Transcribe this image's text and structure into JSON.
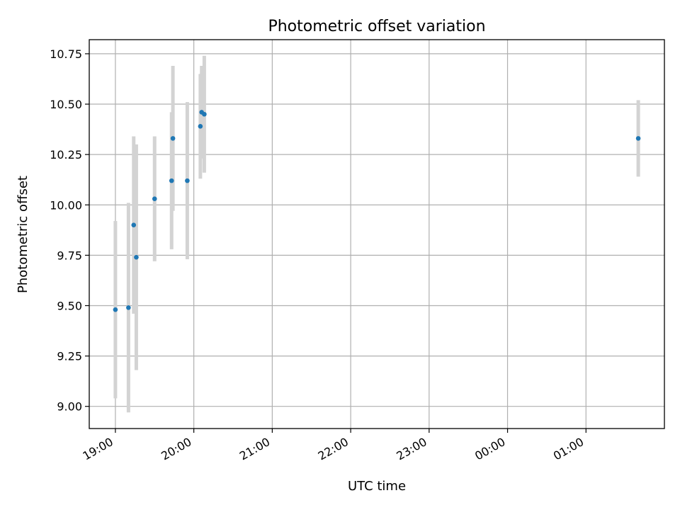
{
  "chart_data": {
    "type": "scatter",
    "title": "Photometric offset variation",
    "xlabel": "UTC time",
    "ylabel": "Photometric offset",
    "x_axis": {
      "kind": "time-of-day",
      "range": [
        "18:40",
        "02:00 (+1 day)"
      ],
      "ticks": [
        {
          "value": "19:00",
          "label": "19:00"
        },
        {
          "value": "20:00",
          "label": "20:00"
        },
        {
          "value": "21:00",
          "label": "21:00"
        },
        {
          "value": "22:00",
          "label": "22:00"
        },
        {
          "value": "23:00",
          "label": "23:00"
        },
        {
          "value": "00:00 (+1 day)",
          "label": "00:00"
        },
        {
          "value": "01:00 (+1 day)",
          "label": "01:00"
        }
      ]
    },
    "y_axis": {
      "range": [
        8.89,
        10.82
      ],
      "ticks": [
        {
          "value": 9.0,
          "label": "9.00"
        },
        {
          "value": 9.25,
          "label": "9.25"
        },
        {
          "value": 9.5,
          "label": "9.50"
        },
        {
          "value": 9.75,
          "label": "9.75"
        },
        {
          "value": 10.0,
          "label": "10.00"
        },
        {
          "value": 10.25,
          "label": "10.25"
        },
        {
          "value": 10.5,
          "label": "10.50"
        },
        {
          "value": 10.75,
          "label": "10.75"
        }
      ]
    },
    "grid": true,
    "legend": "none",
    "colors": {
      "points": "#1f77b4",
      "errorbars": "#d3d3d3"
    },
    "points": [
      {
        "x": "19:00",
        "y": 9.48,
        "yerr": 0.44
      },
      {
        "x": "19:10",
        "y": 9.49,
        "yerr": 0.52
      },
      {
        "x": "19:14",
        "y": 9.9,
        "yerr": 0.44
      },
      {
        "x": "19:16",
        "y": 9.74,
        "yerr": 0.56
      },
      {
        "x": "19:30",
        "y": 10.03,
        "yerr": 0.31
      },
      {
        "x": "19:43",
        "y": 10.12,
        "yerr": 0.34
      },
      {
        "x": "19:44",
        "y": 10.33,
        "yerr": 0.36
      },
      {
        "x": "19:55",
        "y": 10.12,
        "yerr": 0.39
      },
      {
        "x": "20:05",
        "y": 10.39,
        "yerr": 0.26
      },
      {
        "x": "20:06",
        "y": 10.46,
        "yerr": 0.23
      },
      {
        "x": "20:08",
        "y": 10.45,
        "yerr": 0.29
      },
      {
        "x": "01:40 (+1 day)",
        "y": 10.33,
        "yerr": 0.19
      }
    ]
  }
}
